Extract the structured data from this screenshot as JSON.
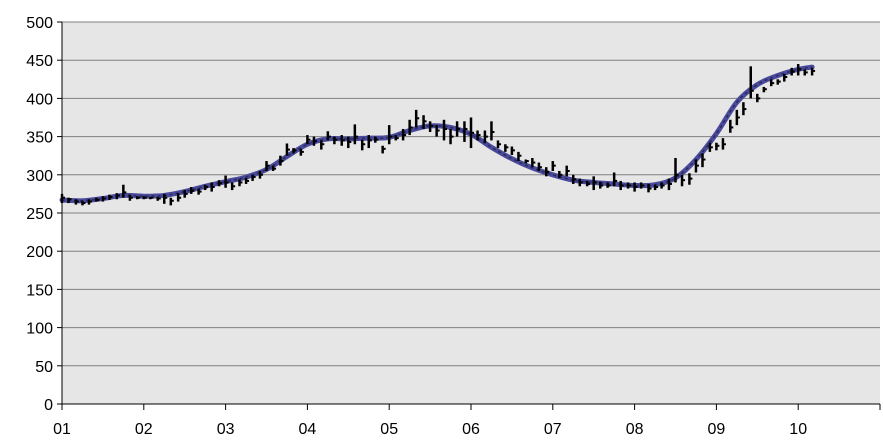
{
  "chart_data": {
    "type": "line",
    "title": "",
    "xlabel": "",
    "ylabel": "",
    "ylim": [
      0,
      500
    ],
    "xlim": [
      2001,
      2011
    ],
    "grid": true,
    "legend": "none",
    "x_tick_labels": [
      "01",
      "02",
      "03",
      "04",
      "05",
      "06",
      "07",
      "08",
      "09",
      "10"
    ],
    "y_tick_labels": [
      "0",
      "50",
      "100",
      "150",
      "200",
      "250",
      "300",
      "350",
      "400",
      "450",
      "500"
    ],
    "colors": {
      "plot_background": "#e6e6e6",
      "trend_line": "#4a4a9c",
      "trend_dash": "#2a2a5c",
      "bar": "#000000",
      "gridline": "#808080"
    },
    "series": [
      {
        "type": "hlc-bars",
        "x": [
          2001.0,
          2001.08,
          2001.17,
          2001.25,
          2001.33,
          2001.42,
          2001.5,
          2001.58,
          2001.67,
          2001.75,
          2001.83,
          2001.92,
          2002.0,
          2002.08,
          2002.17,
          2002.25,
          2002.33,
          2002.42,
          2002.5,
          2002.58,
          2002.67,
          2002.75,
          2002.83,
          2002.92,
          2003.0,
          2003.08,
          2003.17,
          2003.25,
          2003.33,
          2003.42,
          2003.5,
          2003.58,
          2003.67,
          2003.75,
          2003.83,
          2003.92,
          2004.0,
          2004.08,
          2004.17,
          2004.25,
          2004.33,
          2004.42,
          2004.5,
          2004.58,
          2004.67,
          2004.75,
          2004.83,
          2004.92,
          2005.0,
          2005.08,
          2005.17,
          2005.25,
          2005.33,
          2005.42,
          2005.5,
          2005.58,
          2005.67,
          2005.75,
          2005.83,
          2005.92,
          2006.0,
          2006.08,
          2006.17,
          2006.25,
          2006.33,
          2006.42,
          2006.5,
          2006.58,
          2006.67,
          2006.75,
          2006.83,
          2006.92,
          2007.0,
          2007.08,
          2007.17,
          2007.25,
          2007.33,
          2007.42,
          2007.5,
          2007.58,
          2007.67,
          2007.75,
          2007.83,
          2007.92,
          2008.0,
          2008.08,
          2008.17,
          2008.25,
          2008.33,
          2008.42,
          2008.5,
          2008.58,
          2008.67,
          2008.75,
          2008.83,
          2008.92,
          2009.0,
          2009.08,
          2009.17,
          2009.25,
          2009.33,
          2009.42,
          2009.5,
          2009.58,
          2009.67,
          2009.75,
          2009.83,
          2009.92,
          2010.0,
          2010.08,
          2010.17
        ],
        "high": [
          275,
          270,
          268,
          266,
          268,
          270,
          272,
          274,
          276,
          287,
          274,
          272,
          272,
          271,
          271,
          275,
          270,
          276,
          280,
          284,
          282,
          287,
          290,
          293,
          299,
          290,
          294,
          296,
          300,
          305,
          318,
          312,
          325,
          341,
          335,
          334,
          352,
          350,
          345,
          357,
          350,
          352,
          350,
          366,
          346,
          352,
          350,
          338,
          365,
          352,
          360,
          372,
          385,
          378,
          370,
          365,
          372,
          360,
          370,
          370,
          375,
          358,
          358,
          370,
          345,
          340,
          337,
          330,
          320,
          322,
          316,
          310,
          318,
          305,
          312,
          300,
          295,
          292,
          298,
          291,
          290,
          303,
          292,
          290,
          290,
          290,
          288,
          287,
          290,
          295,
          322,
          300,
          302,
          320,
          328,
          342,
          342,
          348,
          372,
          385,
          395,
          442,
          406,
          415,
          425,
          425,
          432,
          440,
          445,
          438,
          440
        ],
        "low": [
          263,
          263,
          261,
          260,
          261,
          265,
          265,
          267,
          268,
          270,
          266,
          268,
          268,
          268,
          266,
          262,
          260,
          265,
          270,
          275,
          274,
          280,
          278,
          285,
          283,
          280,
          285,
          288,
          292,
          295,
          305,
          305,
          312,
          325,
          328,
          325,
          340,
          338,
          333,
          345,
          340,
          338,
          335,
          340,
          332,
          335,
          342,
          328,
          340,
          345,
          345,
          352,
          362,
          360,
          356,
          350,
          345,
          340,
          350,
          343,
          335,
          345,
          342,
          345,
          335,
          330,
          326,
          318,
          315,
          310,
          305,
          298,
          305,
          296,
          298,
          288,
          285,
          285,
          280,
          282,
          283,
          285,
          280,
          282,
          278,
          282,
          277,
          280,
          282,
          280,
          290,
          285,
          287,
          303,
          310,
          330,
          332,
          333,
          355,
          365,
          378,
          400,
          395,
          408,
          416,
          418,
          422,
          430,
          430,
          430,
          430
        ],
        "close": [
          270,
          268,
          265,
          263,
          265,
          267,
          269,
          271,
          273,
          277,
          270,
          270,
          270,
          270,
          269,
          270,
          266,
          270,
          275,
          279,
          278,
          284,
          284,
          289,
          290,
          285,
          290,
          292,
          297,
          300,
          312,
          308,
          318,
          333,
          332,
          330,
          346,
          344,
          340,
          350,
          346,
          345,
          343,
          350,
          340,
          345,
          346,
          334,
          350,
          348,
          352,
          362,
          374,
          370,
          364,
          358,
          360,
          350,
          360,
          360,
          355,
          352,
          350,
          356,
          340,
          336,
          332,
          325,
          318,
          316,
          310,
          304,
          312,
          300,
          305,
          294,
          290,
          288,
          290,
          286,
          286,
          292,
          286,
          286,
          284,
          286,
          282,
          284,
          286,
          288,
          300,
          293,
          295,
          312,
          320,
          336,
          338,
          340,
          362,
          375,
          386,
          410,
          400,
          412,
          420,
          422,
          428,
          435,
          438,
          434,
          436
        ]
      },
      {
        "name": "",
        "type": "smooth-line",
        "x": [
          2001.0,
          2001.25,
          2001.5,
          2001.75,
          2002.0,
          2002.25,
          2002.5,
          2002.75,
          2003.0,
          2003.25,
          2003.5,
          2003.75,
          2004.0,
          2004.25,
          2004.5,
          2004.75,
          2005.0,
          2005.25,
          2005.5,
          2005.75,
          2006.0,
          2006.25,
          2006.5,
          2006.75,
          2007.0,
          2007.25,
          2007.5,
          2007.75,
          2008.0,
          2008.25,
          2008.5,
          2008.75,
          2009.0,
          2009.25,
          2009.5,
          2009.75,
          2010.0,
          2010.17
        ],
        "values": [
          267,
          266,
          269,
          273,
          272,
          273,
          278,
          285,
          291,
          297,
          307,
          324,
          340,
          347,
          347,
          348,
          349,
          358,
          364,
          362,
          353,
          336,
          321,
          309,
          300,
          293,
          290,
          288,
          286,
          287,
          296,
          320,
          354,
          395,
          418,
          430,
          438,
          441
        ]
      }
    ]
  }
}
